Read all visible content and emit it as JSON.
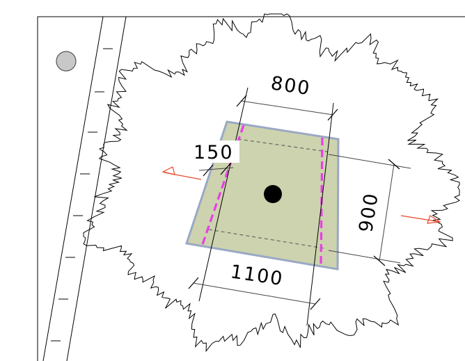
{
  "drawing": {
    "dimensions": {
      "top_width": "800",
      "bottom_width": "1100",
      "height": "900",
      "offset": "150"
    },
    "colors": {
      "footing_fill": "#cdd3ae",
      "footing_stroke": "#9aa8c4",
      "edge_dash": "#e83ee8",
      "section_marker": "#e8462a",
      "column": "#000000",
      "survey_point": "#c8c8c8",
      "frame": "#000000"
    },
    "icons": [
      "survey-point-icon",
      "column-icon",
      "section-marker-left-icon",
      "section-marker-right-icon",
      "tree-canopy-outline"
    ]
  }
}
